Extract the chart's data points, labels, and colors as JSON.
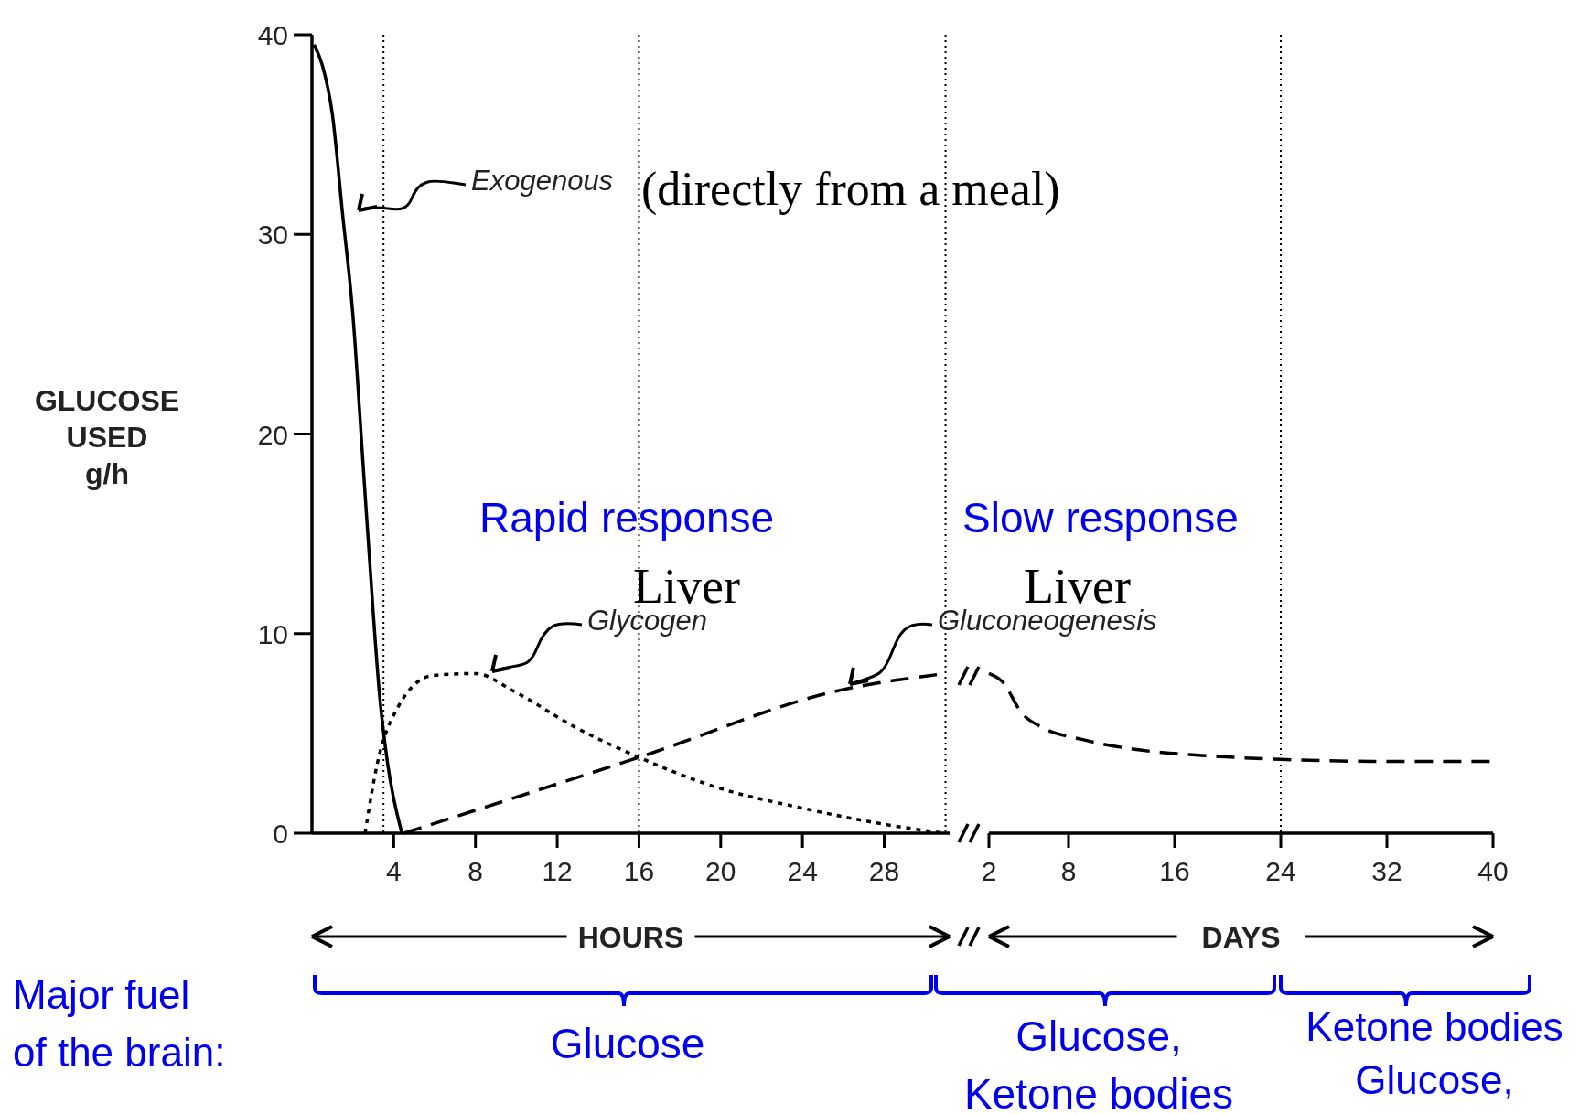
{
  "chart_data": [
    {
      "type": "line",
      "ylabel": "GLUCOSE USED g/h",
      "xlabel": "HOURS",
      "xlim": [
        0,
        31.2
      ],
      "xticks": [
        4,
        8,
        12,
        16,
        20,
        24,
        28
      ],
      "ylim": [
        0,
        40
      ],
      "yticks": [
        0,
        10,
        20,
        30,
        40
      ],
      "series": [
        {
          "name": "Exogenous",
          "color": "#000000",
          "line_style": "solid",
          "x": [
            0.1,
            0.5,
            1,
            1.5,
            2,
            2.5,
            3,
            3.3,
            3.7,
            4.4
          ],
          "values": [
            39.5,
            38.5,
            36,
            31,
            26,
            18.5,
            11,
            7,
            3.5,
            0
          ]
        },
        {
          "name": "Glycogen",
          "color": "#000000",
          "line_style": "dotted",
          "x": [
            2.6,
            3.2,
            4.2,
            5.9,
            8,
            9.9,
            12.9,
            16,
            19.8,
            23.8,
            27.7,
            30.9
          ],
          "values": [
            0,
            3.5,
            6.3,
            7.9,
            8,
            7.1,
            5.3,
            3.8,
            2.3,
            1.3,
            0.5,
            0
          ]
        },
        {
          "name": "Gluconeogenesis",
          "color": "#000000",
          "line_style": "dashed",
          "x": [
            4.5,
            16,
            26,
            31
          ],
          "values": [
            0,
            3.8,
            7.2,
            8
          ]
        }
      ],
      "ref_lines": [
        {
          "axis": "x",
          "value": 3.5,
          "color": "#000000",
          "line_style": "dotted"
        },
        {
          "axis": "x",
          "value": 16,
          "color": "#000000",
          "line_style": "dotted"
        },
        {
          "axis": "x",
          "value": 31,
          "color": "#000000",
          "line_style": "dotted"
        }
      ],
      "annotations": [
        "(directly from a meal)",
        "Rapid response",
        "Liver",
        "Major fuel of the brain:",
        "Glucose"
      ]
    },
    {
      "type": "line",
      "xlabel": "DAYS",
      "xlim": [
        2,
        40
      ],
      "xticks": [
        2,
        8,
        16,
        24,
        32,
        40
      ],
      "ylim": [
        0,
        40
      ],
      "tick_labels": "x",
      "series": [
        {
          "color": "#000000",
          "line_style": "dashed",
          "x": [
            2,
            3,
            4.5,
            6,
            9,
            13,
            18,
            24,
            32,
            40
          ],
          "values": [
            8,
            7.6,
            6,
            5.3,
            4.7,
            4.2,
            3.9,
            3.7,
            3.6,
            3.6
          ]
        }
      ],
      "ref_lines": [
        {
          "axis": "x",
          "value": 24,
          "color": "#000000",
          "line_style": "dotted"
        }
      ],
      "annotations": [
        "Slow response",
        "Liver",
        "Glucose, Ketone bodies",
        "Ketone bodies Glucose,"
      ]
    }
  ]
}
